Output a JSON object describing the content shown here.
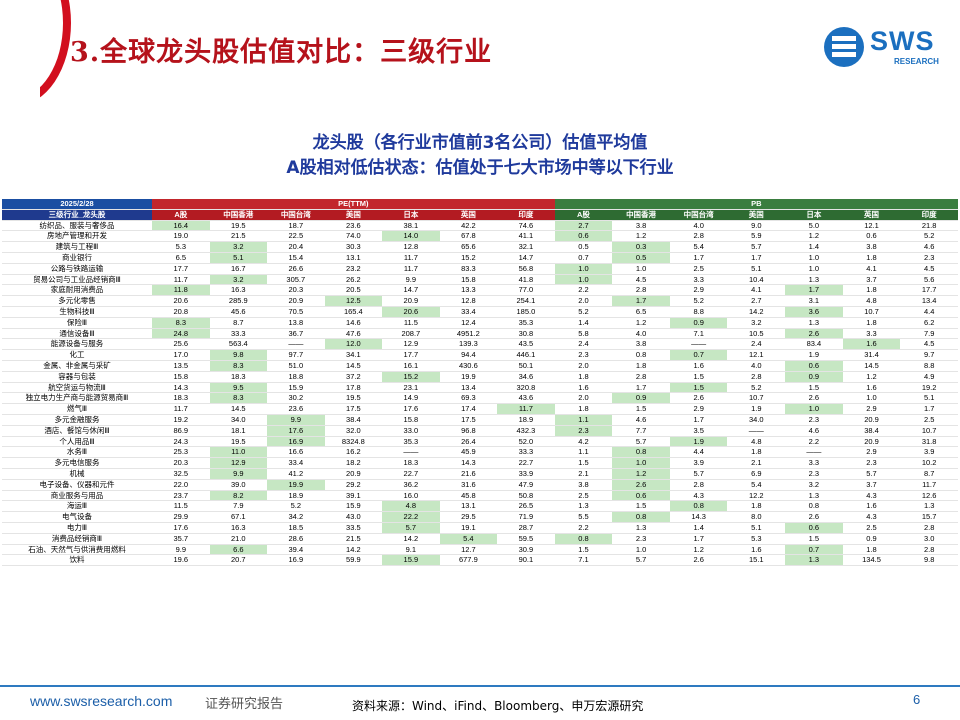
{
  "header": {
    "title": "3.全球龙头股估值对比：三级行业",
    "logo_text": "SWS",
    "logo_sub": "RESEARCH"
  },
  "subtitle_line1": "龙头股（各行业市值前3名公司）估值平均值",
  "subtitle_line2": "A股相对低估状态：估值处于七大市场中等以下行业",
  "table": {
    "date": "2025/2/28",
    "pe_label": "PE(TTM)",
    "pb_label": "PB",
    "first_col_label": "三级行业_龙头股",
    "markets": [
      "A股",
      "中国香港",
      "中国台湾",
      "美国",
      "日本",
      "英国",
      "印度"
    ],
    "rows": [
      {
        "name": "纺织品、服装与奢侈品",
        "pe": [
          "16.4",
          "19.5",
          "18.7",
          "23.6",
          "38.1",
          "42.2",
          "74.6"
        ],
        "pb": [
          "2.7",
          "3.8",
          "4.0",
          "9.0",
          "5.0",
          "12.1",
          "21.8"
        ],
        "pe_hl": [
          0
        ],
        "pb_hl": [
          0
        ]
      },
      {
        "name": "房地产管理和开发",
        "pe": [
          "19.0",
          "21.5",
          "22.5",
          "74.0",
          "14.0",
          "67.8",
          "41.1"
        ],
        "pb": [
          "0.6",
          "1.2",
          "2.8",
          "5.9",
          "1.2",
          "0.6",
          "5.2"
        ],
        "pe_hl": [
          4
        ],
        "pb_hl": [
          0
        ]
      },
      {
        "name": "建筑与工程Ⅲ",
        "pe": [
          "5.3",
          "3.2",
          "20.4",
          "30.3",
          "12.8",
          "65.6",
          "32.1"
        ],
        "pb": [
          "0.5",
          "0.3",
          "5.4",
          "5.7",
          "1.4",
          "3.8",
          "4.6"
        ],
        "pe_hl": [
          1
        ],
        "pb_hl": [
          1
        ]
      },
      {
        "name": "商业银行",
        "pe": [
          "6.5",
          "5.1",
          "15.4",
          "13.1",
          "11.7",
          "15.2",
          "14.7"
        ],
        "pb": [
          "0.7",
          "0.5",
          "1.7",
          "1.7",
          "1.0",
          "1.8",
          "2.3"
        ],
        "pe_hl": [
          1
        ],
        "pb_hl": [
          1
        ]
      },
      {
        "name": "公路与铁路运输",
        "pe": [
          "17.7",
          "16.7",
          "26.6",
          "23.2",
          "11.7",
          "83.3",
          "56.8"
        ],
        "pb": [
          "1.0",
          "1.0",
          "2.5",
          "5.1",
          "1.0",
          "4.1",
          "4.5"
        ],
        "pe_hl": [],
        "pb_hl": [
          0
        ]
      },
      {
        "name": "贸易公司与工业品经销商Ⅲ",
        "pe": [
          "11.7",
          "3.2",
          "305.7",
          "26.2",
          "9.9",
          "15.8",
          "41.8"
        ],
        "pb": [
          "1.0",
          "4.5",
          "3.3",
          "10.4",
          "1.3",
          "3.7",
          "5.6"
        ],
        "pe_hl": [
          1
        ],
        "pb_hl": [
          0
        ]
      },
      {
        "name": "家庭耐用消费品",
        "pe": [
          "11.8",
          "16.3",
          "20.3",
          "20.5",
          "14.7",
          "13.3",
          "77.0"
        ],
        "pb": [
          "2.2",
          "2.8",
          "2.9",
          "4.1",
          "1.7",
          "1.8",
          "17.7"
        ],
        "pe_hl": [
          0
        ],
        "pb_hl": [
          4
        ]
      },
      {
        "name": "多元化零售",
        "pe": [
          "20.6",
          "285.9",
          "20.9",
          "12.5",
          "20.9",
          "12.8",
          "254.1"
        ],
        "pb": [
          "2.0",
          "1.7",
          "5.2",
          "2.7",
          "3.1",
          "4.8",
          "13.4"
        ],
        "pe_hl": [
          3
        ],
        "pb_hl": [
          1
        ]
      },
      {
        "name": "生物科技Ⅲ",
        "pe": [
          "20.8",
          "45.6",
          "70.5",
          "165.4",
          "20.6",
          "33.4",
          "185.0"
        ],
        "pb": [
          "5.2",
          "6.5",
          "8.8",
          "14.2",
          "3.6",
          "10.7",
          "4.4"
        ],
        "pe_hl": [
          4
        ],
        "pb_hl": [
          4
        ]
      },
      {
        "name": "保险Ⅲ",
        "pe": [
          "8.3",
          "8.7",
          "13.8",
          "14.6",
          "11.5",
          "12.4",
          "35.3"
        ],
        "pb": [
          "1.4",
          "1.2",
          "0.9",
          "3.2",
          "1.3",
          "1.8",
          "6.2"
        ],
        "pe_hl": [
          0
        ],
        "pb_hl": [
          2
        ]
      },
      {
        "name": "通信设备Ⅲ",
        "pe": [
          "24.8",
          "33.3",
          "36.7",
          "47.6",
          "208.7",
          "4951.2",
          "30.8"
        ],
        "pb": [
          "5.8",
          "4.0",
          "7.1",
          "10.5",
          "2.6",
          "3.3",
          "7.9"
        ],
        "pe_hl": [
          0
        ],
        "pb_hl": [
          4
        ]
      },
      {
        "name": "能源设备与服务",
        "pe": [
          "25.6",
          "563.4",
          "——",
          "12.0",
          "12.9",
          "139.3",
          "43.5"
        ],
        "pb": [
          "2.4",
          "3.8",
          "——",
          "2.4",
          "83.4",
          "1.6",
          "4.5"
        ],
        "pe_hl": [
          3
        ],
        "pb_hl": [
          5
        ]
      },
      {
        "name": "化工",
        "pe": [
          "17.0",
          "9.8",
          "97.7",
          "34.1",
          "17.7",
          "94.4",
          "446.1"
        ],
        "pb": [
          "2.3",
          "0.8",
          "0.7",
          "12.1",
          "1.9",
          "31.4",
          "9.7"
        ],
        "pe_hl": [
          1
        ],
        "pb_hl": [
          2
        ]
      },
      {
        "name": "金属、非金属与采矿",
        "pe": [
          "13.5",
          "8.3",
          "51.0",
          "14.5",
          "16.1",
          "430.6",
          "50.1"
        ],
        "pb": [
          "2.0",
          "1.8",
          "1.6",
          "4.0",
          "0.6",
          "14.5",
          "8.8"
        ],
        "pe_hl": [
          1
        ],
        "pb_hl": [
          4
        ]
      },
      {
        "name": "容器与包装",
        "pe": [
          "15.8",
          "18.3",
          "18.8",
          "37.2",
          "15.2",
          "19.9",
          "34.6"
        ],
        "pb": [
          "1.8",
          "2.8",
          "1.5",
          "2.8",
          "0.9",
          "1.2",
          "4.9"
        ],
        "pe_hl": [
          4
        ],
        "pb_hl": [
          4
        ]
      },
      {
        "name": "航空货运与物流Ⅲ",
        "pe": [
          "14.3",
          "9.5",
          "15.9",
          "17.8",
          "23.1",
          "13.4",
          "320.8"
        ],
        "pb": [
          "1.6",
          "1.7",
          "1.5",
          "5.2",
          "1.5",
          "1.6",
          "19.2"
        ],
        "pe_hl": [
          1
        ],
        "pb_hl": [
          2
        ]
      },
      {
        "name": "独立电力生产商与能源贸易商Ⅲ",
        "pe": [
          "18.3",
          "8.3",
          "30.2",
          "19.5",
          "14.9",
          "69.3",
          "43.6"
        ],
        "pb": [
          "2.0",
          "0.9",
          "2.6",
          "10.7",
          "2.6",
          "1.0",
          "5.1"
        ],
        "pe_hl": [
          1
        ],
        "pb_hl": [
          1
        ]
      },
      {
        "name": "燃气Ⅲ",
        "pe": [
          "11.7",
          "14.5",
          "23.6",
          "17.5",
          "17.6",
          "17.4",
          "11.7"
        ],
        "pb": [
          "1.8",
          "1.5",
          "2.9",
          "1.9",
          "1.0",
          "2.9",
          "1.7"
        ],
        "pe_hl": [
          6
        ],
        "pb_hl": [
          4
        ]
      },
      {
        "name": "多元金融服务",
        "pe": [
          "19.2",
          "34.0",
          "9.9",
          "38.4",
          "15.8",
          "17.5",
          "18.9"
        ],
        "pb": [
          "1.1",
          "4.6",
          "1.7",
          "34.0",
          "2.3",
          "20.9",
          "2.5"
        ],
        "pe_hl": [
          2
        ],
        "pb_hl": [
          0
        ]
      },
      {
        "name": "酒店、餐馆与休闲Ⅲ",
        "pe": [
          "86.9",
          "18.1",
          "17.6",
          "32.0",
          "33.0",
          "96.8",
          "432.3"
        ],
        "pb": [
          "2.3",
          "7.7",
          "3.5",
          "——",
          "4.6",
          "38.4",
          "10.7"
        ],
        "pe_hl": [
          2
        ],
        "pb_hl": [
          0
        ]
      },
      {
        "name": "个人用品Ⅲ",
        "pe": [
          "24.3",
          "19.5",
          "16.9",
          "8324.8",
          "35.3",
          "26.4",
          "52.0"
        ],
        "pb": [
          "4.2",
          "5.7",
          "1.9",
          "4.8",
          "2.2",
          "20.9",
          "31.8"
        ],
        "pe_hl": [
          2
        ],
        "pb_hl": [
          2
        ]
      },
      {
        "name": "水务Ⅲ",
        "pe": [
          "25.3",
          "11.0",
          "16.6",
          "16.2",
          "——",
          "45.9",
          "33.3"
        ],
        "pb": [
          "1.1",
          "0.8",
          "4.4",
          "1.8",
          "——",
          "2.9",
          "3.9"
        ],
        "pe_hl": [
          1
        ],
        "pb_hl": [
          1
        ]
      },
      {
        "name": "多元电信服务",
        "pe": [
          "20.3",
          "12.9",
          "33.4",
          "18.2",
          "18.3",
          "14.3",
          "22.7"
        ],
        "pb": [
          "1.5",
          "1.0",
          "3.9",
          "2.1",
          "3.3",
          "2.3",
          "10.2"
        ],
        "pe_hl": [
          1
        ],
        "pb_hl": [
          1
        ]
      },
      {
        "name": "机械",
        "pe": [
          "32.5",
          "9.9",
          "41.2",
          "20.9",
          "22.7",
          "21.6",
          "33.9"
        ],
        "pb": [
          "2.1",
          "1.2",
          "5.7",
          "6.9",
          "2.3",
          "5.7",
          "8.7"
        ],
        "pe_hl": [
          1
        ],
        "pb_hl": [
          1
        ]
      },
      {
        "name": "电子设备、仪器和元件",
        "pe": [
          "22.0",
          "39.0",
          "19.9",
          "29.2",
          "36.2",
          "31.6",
          "47.9"
        ],
        "pb": [
          "3.8",
          "2.6",
          "2.8",
          "5.4",
          "3.2",
          "3.7",
          "11.7"
        ],
        "pe_hl": [
          2
        ],
        "pb_hl": [
          1
        ]
      },
      {
        "name": "商业服务与用品",
        "pe": [
          "23.7",
          "8.2",
          "18.9",
          "39.1",
          "16.0",
          "45.8",
          "50.8"
        ],
        "pb": [
          "2.5",
          "0.6",
          "4.3",
          "12.2",
          "1.3",
          "4.3",
          "12.6"
        ],
        "pe_hl": [
          1
        ],
        "pb_hl": [
          1
        ]
      },
      {
        "name": "海运Ⅲ",
        "pe": [
          "11.5",
          "7.9",
          "5.2",
          "15.9",
          "4.8",
          "13.1",
          "26.5"
        ],
        "pb": [
          "1.3",
          "1.5",
          "0.8",
          "1.8",
          "0.8",
          "1.6",
          "1.3"
        ],
        "pe_hl": [
          4
        ],
        "pb_hl": [
          2
        ]
      },
      {
        "name": "电气设备",
        "pe": [
          "29.9",
          "67.1",
          "34.2",
          "43.0",
          "22.2",
          "29.5",
          "71.9"
        ],
        "pb": [
          "5.5",
          "0.8",
          "14.3",
          "8.0",
          "2.6",
          "4.3",
          "15.7"
        ],
        "pe_hl": [
          4
        ],
        "pb_hl": [
          1
        ]
      },
      {
        "name": "电力Ⅲ",
        "pe": [
          "17.6",
          "16.3",
          "18.5",
          "33.5",
          "5.7",
          "19.1",
          "28.7"
        ],
        "pb": [
          "2.2",
          "1.3",
          "1.4",
          "5.1",
          "0.6",
          "2.5",
          "2.8"
        ],
        "pe_hl": [
          4
        ],
        "pb_hl": [
          4
        ]
      },
      {
        "name": "消费品经销商Ⅲ",
        "pe": [
          "35.7",
          "21.0",
          "28.6",
          "21.5",
          "14.2",
          "5.4",
          "59.5"
        ],
        "pb": [
          "0.8",
          "2.3",
          "1.7",
          "5.3",
          "1.5",
          "0.9",
          "3.0"
        ],
        "pe_hl": [
          5
        ],
        "pb_hl": [
          0
        ]
      },
      {
        "name": "石油、天然气与供消费用燃料",
        "pe": [
          "9.9",
          "6.6",
          "39.4",
          "14.2",
          "9.1",
          "12.7",
          "30.9"
        ],
        "pb": [
          "1.5",
          "1.0",
          "1.2",
          "1.6",
          "0.7",
          "1.8",
          "2.8"
        ],
        "pe_hl": [
          1
        ],
        "pb_hl": [
          4
        ]
      },
      {
        "name": "饮料",
        "pe": [
          "19.6",
          "20.7",
          "16.9",
          "59.9",
          "15.9",
          "677.9",
          "90.1"
        ],
        "pb": [
          "7.1",
          "5.7",
          "2.6",
          "15.1",
          "1.3",
          "134.5",
          "9.8"
        ],
        "pe_hl": [
          4
        ],
        "pb_hl": [
          4
        ]
      }
    ]
  },
  "footer": {
    "url": "www.swsresearch.com",
    "doc_type": "证券研究报告",
    "source": "资料来源：Wind、iFind、Bloomberg、申万宏源研究",
    "page": "6"
  }
}
